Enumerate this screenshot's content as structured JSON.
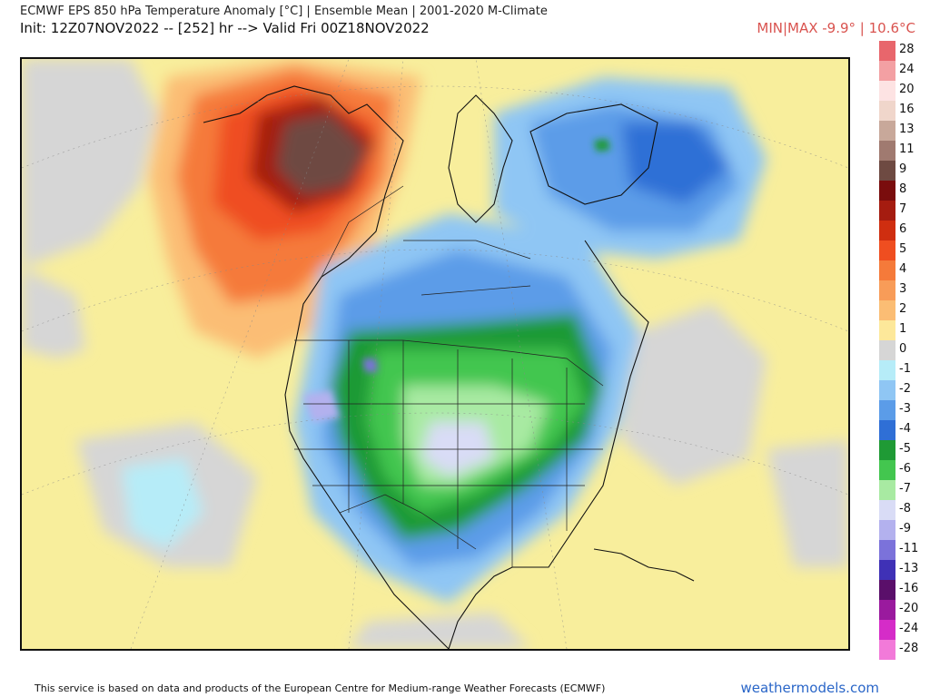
{
  "header": {
    "title": "ECMWF EPS 850 hPa Temperature Anomaly [°C] | Ensemble Mean | 2001-2020 M-Climate",
    "subtitle": "Init: 12Z07NOV2022 -- [252] hr --> Valid Fri 00Z18NOV2022",
    "minmax": "MIN|MAX -9.9° | 10.6°C",
    "minmax_color": "#d9534f"
  },
  "legend": {
    "entries": [
      {
        "label": "28",
        "color": "#e8666c"
      },
      {
        "label": "24",
        "color": "#f3a0a3"
      },
      {
        "label": "20",
        "color": "#fde3e3"
      },
      {
        "label": "16",
        "color": "#f0d6cb"
      },
      {
        "label": "13",
        "color": "#c8a89a"
      },
      {
        "label": "11",
        "color": "#a07a70"
      },
      {
        "label": "9",
        "color": "#6e4a42"
      },
      {
        "label": "8",
        "color": "#7a0d0d"
      },
      {
        "label": "7",
        "color": "#a51c10"
      },
      {
        "label": "6",
        "color": "#cf2e10"
      },
      {
        "label": "5",
        "color": "#ef4e20"
      },
      {
        "label": "4",
        "color": "#f57a3a"
      },
      {
        "label": "3",
        "color": "#f89c58"
      },
      {
        "label": "2",
        "color": "#fbbd74"
      },
      {
        "label": "1",
        "color": "#fde89a"
      },
      {
        "label": "0",
        "color": "#d6d6d6"
      },
      {
        "label": "-1",
        "color": "#b6ecf8"
      },
      {
        "label": "-2",
        "color": "#8fc6f4"
      },
      {
        "label": "-3",
        "color": "#5b9ce8"
      },
      {
        "label": "-4",
        "color": "#2f6fd6"
      },
      {
        "label": "-5",
        "color": "#1f9a35"
      },
      {
        "label": "-6",
        "color": "#43c64f"
      },
      {
        "label": "-7",
        "color": "#a8eaa2"
      },
      {
        "label": "-8",
        "color": "#d9dcf6"
      },
      {
        "label": "-9",
        "color": "#b3b1ee"
      },
      {
        "label": "-11",
        "color": "#7b72da"
      },
      {
        "label": "-13",
        "color": "#3f31b6"
      },
      {
        "label": "-16",
        "color": "#5a0f6a"
      },
      {
        "label": "-20",
        "color": "#9a1a9e"
      },
      {
        "label": "-24",
        "color": "#d52cc8"
      },
      {
        "label": "-28",
        "color": "#f27ad9"
      }
    ]
  },
  "footer": {
    "credit": "This service is based on data and products of the European Centre for Medium-range Weather Forecasts (ECMWF)",
    "brand": "weathermodels.com",
    "brand_color": "#2a66c8"
  }
}
